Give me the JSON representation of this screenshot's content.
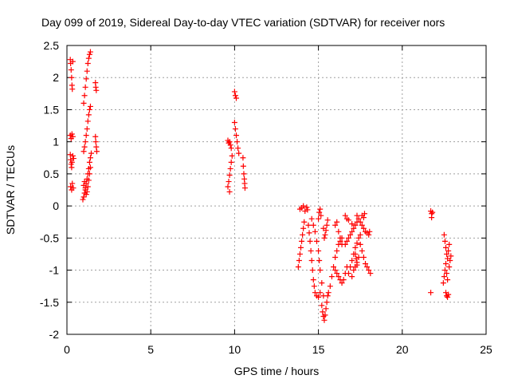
{
  "chart_data": {
    "type": "scatter",
    "title": "Day 099 of 2019, Sidereal Day-to-day VTEC variation (SDTVAR) for receiver nors",
    "xlabel": "GPS time / hours",
    "ylabel": "SDTVAR / TECUs",
    "xlim": [
      0,
      25
    ],
    "ylim": [
      -2,
      2.5
    ],
    "xticks": [
      0,
      5,
      10,
      15,
      20,
      25
    ],
    "yticks": [
      -2,
      -1.5,
      -1,
      -0.5,
      0,
      0.5,
      1,
      1.5,
      2,
      2.5
    ],
    "grid": true,
    "marker": "+",
    "color": "#ff0000",
    "series": [
      {
        "name": "SDTVAR",
        "points": [
          [
            0.2,
            2.28
          ],
          [
            0.22,
            2.22
          ],
          [
            0.25,
            2.12
          ],
          [
            0.28,
            2.0
          ],
          [
            0.3,
            1.88
          ],
          [
            0.32,
            1.82
          ],
          [
            0.35,
            2.25
          ],
          [
            0.2,
            1.1
          ],
          [
            0.25,
            1.05
          ],
          [
            0.3,
            1.12
          ],
          [
            0.35,
            1.08
          ],
          [
            0.2,
            0.8
          ],
          [
            0.22,
            0.72
          ],
          [
            0.25,
            0.65
          ],
          [
            0.28,
            0.6
          ],
          [
            0.3,
            0.68
          ],
          [
            0.35,
            0.78
          ],
          [
            0.4,
            0.74
          ],
          [
            0.22,
            0.3
          ],
          [
            0.28,
            0.25
          ],
          [
            0.32,
            0.35
          ],
          [
            0.38,
            0.28
          ],
          [
            0.95,
            0.1
          ],
          [
            1.0,
            0.14
          ],
          [
            1.05,
            0.2
          ],
          [
            1.1,
            0.28
          ],
          [
            1.15,
            0.35
          ],
          [
            1.2,
            0.42
          ],
          [
            1.25,
            0.5
          ],
          [
            1.3,
            0.58
          ],
          [
            1.35,
            0.68
          ],
          [
            1.4,
            0.75
          ],
          [
            1.45,
            0.82
          ],
          [
            1.0,
            0.32
          ],
          [
            1.05,
            0.38
          ],
          [
            1.1,
            0.25
          ],
          [
            1.15,
            0.18
          ],
          [
            1.2,
            0.22
          ],
          [
            1.25,
            0.3
          ],
          [
            1.3,
            0.4
          ],
          [
            1.35,
            0.5
          ],
          [
            1.4,
            0.6
          ],
          [
            1.0,
            0.85
          ],
          [
            1.05,
            0.92
          ],
          [
            1.1,
            1.0
          ],
          [
            1.15,
            1.1
          ],
          [
            1.2,
            1.2
          ],
          [
            1.25,
            1.32
          ],
          [
            1.3,
            1.42
          ],
          [
            1.35,
            1.5
          ],
          [
            1.4,
            1.55
          ],
          [
            1.0,
            1.6
          ],
          [
            1.05,
            1.72
          ],
          [
            1.1,
            1.85
          ],
          [
            1.15,
            1.98
          ],
          [
            1.2,
            2.1
          ],
          [
            1.25,
            2.22
          ],
          [
            1.3,
            2.3
          ],
          [
            1.35,
            2.36
          ],
          [
            1.4,
            2.4
          ],
          [
            1.7,
            1.92
          ],
          [
            1.72,
            1.85
          ],
          [
            1.75,
            1.8
          ],
          [
            1.7,
            1.08
          ],
          [
            1.72,
            1.0
          ],
          [
            1.75,
            0.92
          ],
          [
            1.78,
            0.85
          ],
          [
            9.6,
            1.02
          ],
          [
            9.65,
            0.98
          ],
          [
            9.7,
            1.0
          ],
          [
            9.75,
            0.95
          ],
          [
            9.8,
            0.9
          ],
          [
            9.6,
            0.3
          ],
          [
            9.65,
            0.38
          ],
          [
            9.7,
            0.48
          ],
          [
            9.75,
            0.58
          ],
          [
            9.8,
            0.68
          ],
          [
            9.85,
            0.78
          ],
          [
            9.7,
            0.22
          ],
          [
            10.0,
            1.78
          ],
          [
            10.05,
            1.72
          ],
          [
            10.1,
            1.68
          ],
          [
            10.0,
            1.3
          ],
          [
            10.05,
            1.2
          ],
          [
            10.1,
            1.1
          ],
          [
            10.15,
            1.0
          ],
          [
            10.2,
            0.9
          ],
          [
            10.25,
            0.82
          ],
          [
            10.5,
            0.75
          ],
          [
            10.52,
            0.62
          ],
          [
            10.55,
            0.5
          ],
          [
            10.58,
            0.42
          ],
          [
            10.6,
            0.35
          ],
          [
            10.62,
            0.28
          ],
          [
            13.8,
            -0.95
          ],
          [
            13.85,
            -0.85
          ],
          [
            13.9,
            -0.75
          ],
          [
            13.95,
            -0.65
          ],
          [
            14.0,
            -0.55
          ],
          [
            14.05,
            -0.45
          ],
          [
            14.1,
            -0.35
          ],
          [
            14.15,
            -0.25
          ],
          [
            13.9,
            -0.05
          ],
          [
            14.0,
            -0.03
          ],
          [
            14.1,
            0.0
          ],
          [
            14.2,
            -0.08
          ],
          [
            14.3,
            -0.02
          ],
          [
            14.35,
            -0.06
          ],
          [
            14.4,
            -0.3
          ],
          [
            14.45,
            -0.42
          ],
          [
            14.5,
            -0.55
          ],
          [
            14.55,
            -0.7
          ],
          [
            14.6,
            -0.85
          ],
          [
            14.65,
            -1.0
          ],
          [
            14.7,
            -1.15
          ],
          [
            14.75,
            -1.25
          ],
          [
            14.8,
            -1.35
          ],
          [
            14.9,
            -1.4
          ],
          [
            15.0,
            -1.42
          ],
          [
            15.1,
            -1.35
          ],
          [
            14.6,
            -0.2
          ],
          [
            14.7,
            -0.3
          ],
          [
            14.8,
            -0.4
          ],
          [
            14.9,
            -0.55
          ],
          [
            15.0,
            -0.7
          ],
          [
            15.05,
            -0.85
          ],
          [
            15.1,
            -1.0
          ],
          [
            15.2,
            -1.2
          ],
          [
            15.3,
            -1.4
          ],
          [
            15.2,
            -1.55
          ],
          [
            15.25,
            -1.65
          ],
          [
            15.3,
            -1.72
          ],
          [
            15.35,
            -1.78
          ],
          [
            15.4,
            -1.7
          ],
          [
            15.45,
            -1.6
          ],
          [
            15.5,
            -1.5
          ],
          [
            15.55,
            -1.4
          ],
          [
            15.6,
            -1.35
          ],
          [
            15.0,
            -0.2
          ],
          [
            15.05,
            -0.1
          ],
          [
            15.1,
            -0.05
          ],
          [
            15.15,
            -0.15
          ],
          [
            15.3,
            -0.35
          ],
          [
            15.35,
            -0.5
          ],
          [
            15.4,
            -0.45
          ],
          [
            15.45,
            -0.38
          ],
          [
            15.5,
            -0.3
          ],
          [
            15.55,
            -0.22
          ],
          [
            15.7,
            -1.25
          ],
          [
            15.8,
            -1.1
          ],
          [
            15.9,
            -0.95
          ],
          [
            16.0,
            -0.8
          ],
          [
            16.1,
            -0.7
          ],
          [
            16.2,
            -0.6
          ],
          [
            16.3,
            -0.55
          ],
          [
            16.4,
            -0.5
          ],
          [
            16.0,
            -1.0
          ],
          [
            16.1,
            -1.05
          ],
          [
            16.2,
            -1.1
          ],
          [
            16.3,
            -1.15
          ],
          [
            16.4,
            -1.2
          ],
          [
            16.5,
            -1.15
          ],
          [
            16.6,
            -1.05
          ],
          [
            16.7,
            -0.95
          ],
          [
            16.0,
            -0.3
          ],
          [
            16.1,
            -0.25
          ],
          [
            16.2,
            -0.4
          ],
          [
            16.3,
            -0.5
          ],
          [
            16.4,
            -0.6
          ],
          [
            16.6,
            -0.6
          ],
          [
            16.7,
            -0.55
          ],
          [
            16.8,
            -0.5
          ],
          [
            16.9,
            -0.45
          ],
          [
            17.0,
            -0.4
          ],
          [
            17.1,
            -0.35
          ],
          [
            17.2,
            -0.3
          ],
          [
            17.3,
            -0.25
          ],
          [
            16.8,
            -1.05
          ],
          [
            16.9,
            -0.95
          ],
          [
            17.0,
            -0.85
          ],
          [
            17.1,
            -0.75
          ],
          [
            17.2,
            -0.65
          ],
          [
            17.3,
            -0.58
          ],
          [
            17.4,
            -0.5
          ],
          [
            17.5,
            -0.45
          ],
          [
            17.0,
            -1.1
          ],
          [
            17.1,
            -1.0
          ],
          [
            17.2,
            -0.95
          ],
          [
            17.3,
            -0.88
          ],
          [
            17.4,
            -0.8
          ],
          [
            17.5,
            -0.6
          ],
          [
            17.6,
            -0.7
          ],
          [
            17.7,
            -0.8
          ],
          [
            17.8,
            -0.9
          ],
          [
            17.9,
            -0.95
          ],
          [
            18.0,
            -1.0
          ],
          [
            18.1,
            -1.05
          ],
          [
            17.3,
            -0.15
          ],
          [
            17.4,
            -0.2
          ],
          [
            17.5,
            -0.25
          ],
          [
            17.6,
            -0.3
          ],
          [
            17.7,
            -0.35
          ],
          [
            17.8,
            -0.4
          ],
          [
            17.9,
            -0.42
          ],
          [
            18.0,
            -0.45
          ],
          [
            18.05,
            -0.4
          ],
          [
            16.6,
            -0.15
          ],
          [
            16.7,
            -0.2
          ],
          [
            16.8,
            -0.22
          ],
          [
            17.0,
            -0.28
          ],
          [
            17.6,
            -0.15
          ],
          [
            17.7,
            -0.18
          ],
          [
            17.75,
            -0.12
          ],
          [
            17.2,
            -0.75
          ],
          [
            17.25,
            -0.82
          ],
          [
            17.3,
            -0.92
          ],
          [
            21.7,
            -0.08
          ],
          [
            21.75,
            -0.12
          ],
          [
            21.8,
            -0.1
          ],
          [
            21.75,
            -0.18
          ],
          [
            21.7,
            -1.35
          ],
          [
            22.5,
            -0.45
          ],
          [
            22.55,
            -0.55
          ],
          [
            22.6,
            -0.65
          ],
          [
            22.65,
            -0.75
          ],
          [
            22.7,
            -0.82
          ],
          [
            22.75,
            -0.7
          ],
          [
            22.8,
            -0.6
          ],
          [
            22.45,
            -1.2
          ],
          [
            22.5,
            -1.1
          ],
          [
            22.55,
            -1.0
          ],
          [
            22.6,
            -0.9
          ],
          [
            22.65,
            -1.05
          ],
          [
            22.7,
            -1.15
          ],
          [
            22.6,
            -1.35
          ],
          [
            22.65,
            -1.4
          ],
          [
            22.7,
            -1.42
          ],
          [
            22.75,
            -1.38
          ],
          [
            22.8,
            -0.95
          ],
          [
            22.85,
            -0.85
          ],
          [
            22.9,
            -0.78
          ]
        ]
      }
    ]
  }
}
